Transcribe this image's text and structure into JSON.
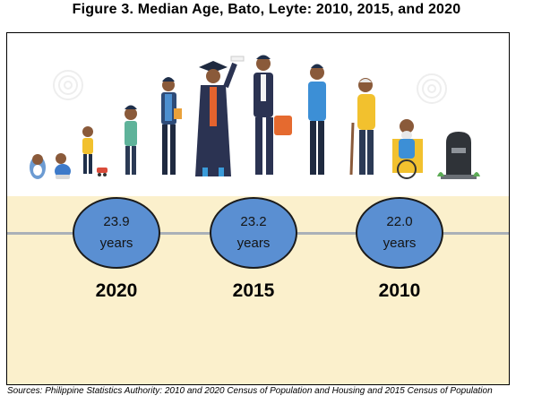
{
  "title": "Figure 3. Median Age, Bato, Leyte: 2010, 2015, and 2020",
  "colors": {
    "band": "#fbf0cc",
    "circle_fill": "#5a8fd2",
    "circle_border": "#1b1b1b",
    "timeline": "#aab0b8"
  },
  "chart_data": {
    "type": "table",
    "title": "Figure 3. Median Age, Bato, Leyte: 2010, 2015, and 2020",
    "categories": [
      "2020",
      "2015",
      "2010"
    ],
    "values": [
      23.9,
      23.2,
      22.0
    ],
    "unit": "years",
    "items": [
      {
        "year": "2020",
        "value": "23.9",
        "unit": "years"
      },
      {
        "year": "2015",
        "value": "23.2",
        "unit": "years"
      },
      {
        "year": "2010",
        "value": "22.0",
        "unit": "years"
      }
    ],
    "illustration": "life-stages-figures"
  },
  "source": "Sources: Philippine Statistics Authority: 2010 and 2020 Census of Population and Housing and 2015 Census of Population"
}
